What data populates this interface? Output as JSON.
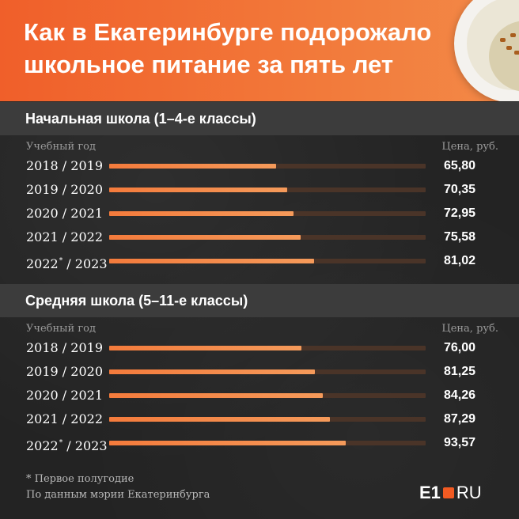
{
  "header": {
    "title_line1": "Как в Екатеринбурге подорожало",
    "title_line2": "школьное питание за пять лет"
  },
  "colors": {
    "accent": "#f47b3c",
    "header_bg": "#f05f2a",
    "track": "#4a3428"
  },
  "chart_data": [
    {
      "type": "bar",
      "title": "Начальная школа (1–4-е классы)",
      "xlabel": "Учебный год",
      "ylabel": "Цена, руб.",
      "categories": [
        "2018 / 2019",
        "2019 / 2020",
        "2020 / 2021",
        "2021 / 2022",
        "2022* / 2023"
      ],
      "values": [
        65.8,
        70.35,
        72.95,
        75.58,
        81.02
      ],
      "value_labels": [
        "65,80",
        "70,35",
        "72,95",
        "75,58",
        "81,02"
      ],
      "ylim": [
        0,
        125
      ],
      "orientation": "horizontal"
    },
    {
      "type": "bar",
      "title": "Средняя школа (5–11-е классы)",
      "xlabel": "Учебный год",
      "ylabel": "Цена, руб.",
      "categories": [
        "2018 / 2019",
        "2019 / 2020",
        "2020 / 2021",
        "2021 / 2022",
        "2022* / 2023"
      ],
      "values": [
        76.0,
        81.25,
        84.26,
        87.29,
        93.57
      ],
      "value_labels": [
        "76,00",
        "81,25",
        "84,26",
        "87,29",
        "93,57"
      ],
      "ylim": [
        0,
        125
      ],
      "orientation": "horizontal"
    }
  ],
  "rows1": [
    {
      "year": "2018 / 2019",
      "star": "",
      "year_end": ""
    },
    {
      "year": "2019 / 2020",
      "star": "",
      "year_end": ""
    },
    {
      "year": "2020 / 2021",
      "star": "",
      "year_end": ""
    },
    {
      "year": "2021 / 2022",
      "star": "",
      "year_end": ""
    },
    {
      "year": "2022",
      "star": "*",
      "year_end": " / 2023"
    }
  ],
  "rows2": [
    {
      "year": "2018 / 2019",
      "star": "",
      "year_end": ""
    },
    {
      "year": "2019 / 2020",
      "star": "",
      "year_end": ""
    },
    {
      "year": "2020 / 2021",
      "star": "",
      "year_end": ""
    },
    {
      "year": "2021 / 2022",
      "star": "",
      "year_end": ""
    },
    {
      "year": "2022",
      "star": "*",
      "year_end": " / 2023"
    }
  ],
  "footer": {
    "note": "* Первое полугодие",
    "source": "По данным мэрии Екатеринбурга"
  },
  "logo": {
    "e1": "E1",
    "ru": "RU"
  },
  "icons": {
    "plate": "soup-plate-icon"
  }
}
